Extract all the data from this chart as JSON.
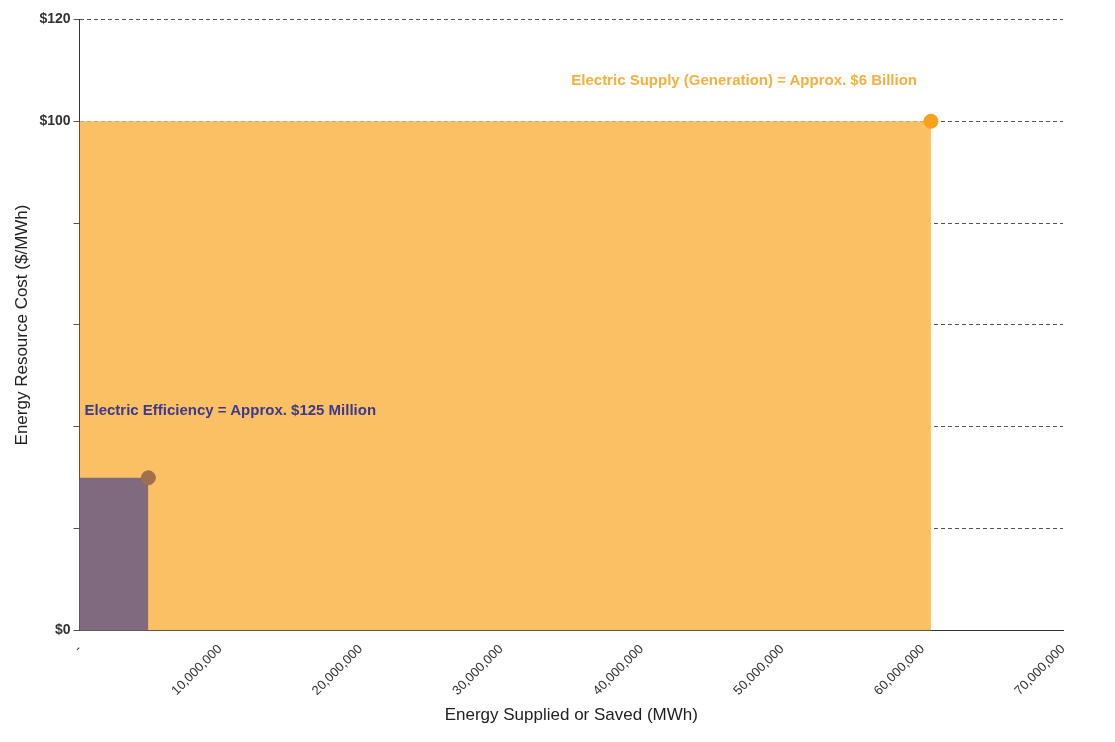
{
  "chart_data": {
    "type": "area",
    "xlabel": "Energy Supplied or Saved (MWh)",
    "ylabel": "Energy Resource Cost ($/MWh)",
    "xlim": [
      0,
      70000000
    ],
    "xticks": [
      {
        "value": 0,
        "label": "-"
      },
      {
        "value": 10000000,
        "label": "10,000,000"
      },
      {
        "value": 20000000,
        "label": "20,000,000"
      },
      {
        "value": 30000000,
        "label": "30,000,000"
      },
      {
        "value": 40000000,
        "label": "40,000,000"
      },
      {
        "value": 50000000,
        "label": "50,000,000"
      },
      {
        "value": 60000000,
        "label": "60,000,000"
      },
      {
        "value": 70000000,
        "label": "70,000,000"
      }
    ],
    "ylim": [
      0,
      120
    ],
    "yticks": [
      {
        "value": 0,
        "label": "$0"
      },
      {
        "value": 20,
        "label": null
      },
      {
        "value": 40,
        "label": null
      },
      {
        "value": 60,
        "label": null
      },
      {
        "value": 80,
        "label": null
      },
      {
        "value": 100,
        "label": "$100"
      },
      {
        "value": 120,
        "label": "$120"
      }
    ],
    "grid": "y",
    "line_style": "dashed",
    "marker": "none",
    "legend": false,
    "series": [
      {
        "color": "#fcc064",
        "x": [
          0,
          60600000
        ],
        "values": [
          100,
          100
        ]
      },
      {
        "color": "#7f6a80",
        "x": [
          0,
          4900000
        ],
        "values": [
          30,
          30
        ]
      },
      {
        "type": "scatter",
        "marker": "circle",
        "color": "#f7a21b",
        "x": [
          60600000
        ],
        "values": [
          100
        ]
      },
      {
        "type": "scatter",
        "marker": "circle",
        "color": "#a0704e",
        "x": [
          4900000
        ],
        "values": [
          30
        ]
      }
    ],
    "annotations": [
      "Electric Supply (Generation) = Approx. $6 Billion",
      "Electric Efficiency = Approx. $125 Million"
    ]
  }
}
